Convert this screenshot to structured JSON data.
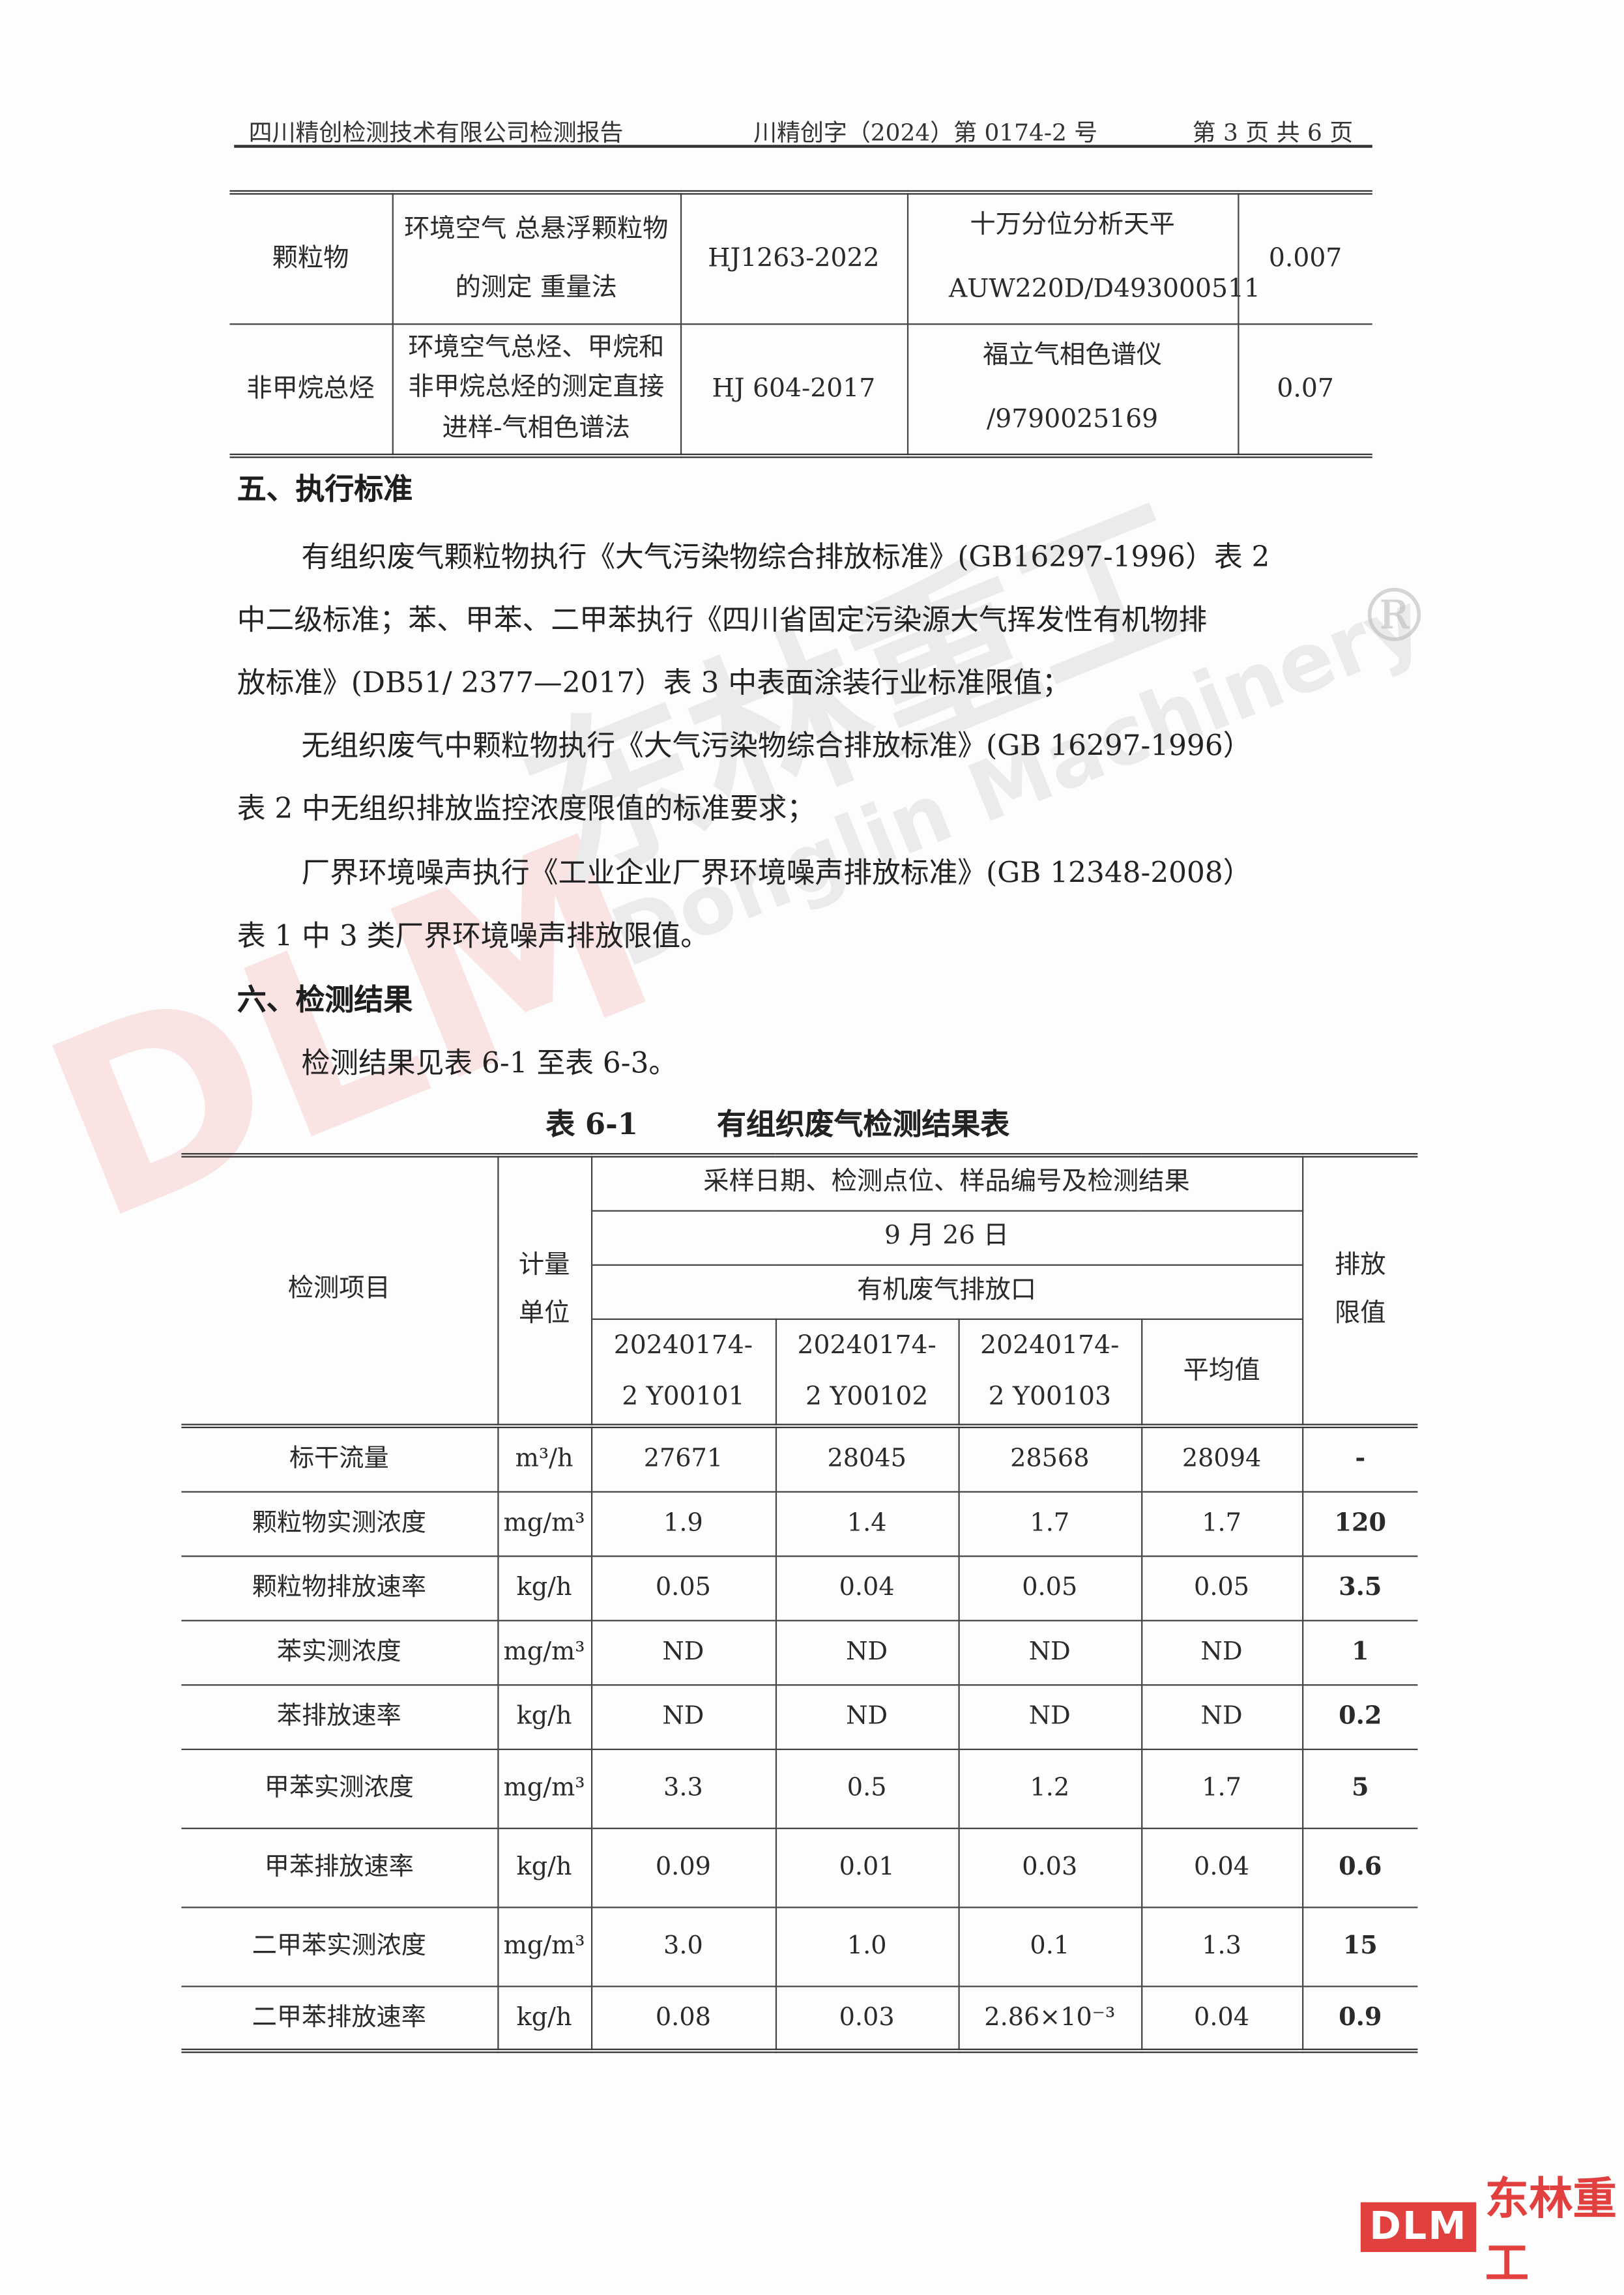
{
  "header": {
    "company": "四川精创检测技术有限公司检测报告",
    "report_no": "川精创字（2024）第 0174-2 号",
    "page": "第 3 页  共 6 页"
  },
  "method_table": {
    "rows": [
      {
        "item": "颗粒物",
        "method": "环境空气 总悬浮颗粒物的测定 重量法",
        "standard": "HJ1263-2022",
        "instrument": "十万分位分析天平 AUW220D/D493000511",
        "limit": "0.007"
      },
      {
        "item": "非甲烷总烃",
        "method": "环境空气总烃、甲烷和非甲烷总烃的测定直接进样-气相色谱法",
        "standard": "HJ 604-2017",
        "instrument": "福立气相色谱仪 /9790025169",
        "limit": "0.07"
      }
    ]
  },
  "section5": {
    "title": "五、执行标准",
    "lines": [
      "有组织废气颗粒物执行《大气污染物综合排放标准》(GB16297-1996）表 2",
      "中二级标准；苯、甲苯、二甲苯执行《四川省固定污染源大气挥发性有机物排",
      "放标准》(DB51/ 2377—2017）表 3 中表面涂装行业标准限值；",
      "无组织废气中颗粒物执行《大气污染物综合排放标准》(GB 16297-1996）",
      "表 2 中无组织排放监控浓度限值的标准要求；",
      "厂界环境噪声执行《工业企业厂界环境噪声排放标准》(GB 12348-2008）",
      "表 1 中 3 类厂界环境噪声排放限值。"
    ]
  },
  "section6": {
    "title": "六、检测结果",
    "intro": "检测结果见表 6-1 至表 6-3。"
  },
  "table6_1": {
    "number": "表 6-1",
    "title": "有组织废气检测结果表",
    "col_item": "检测项目",
    "col_unit": "计量单位",
    "col_group": "采样日期、检测点位、样品编号及检测结果",
    "date": "9 月 26 日",
    "location": "有机废气排放口",
    "samples": [
      "20240174-2 Y00101",
      "20240174-2 Y00102",
      "20240174-2 Y00103"
    ],
    "col_avg": "平均值",
    "col_limit": "排放限值",
    "rows": [
      {
        "item": "标干流量",
        "unit": "m³/h",
        "values": [
          "27671",
          "28045",
          "28568"
        ],
        "avg": "28094",
        "limit": "-"
      },
      {
        "item": "颗粒物实测浓度",
        "unit": "mg/m³",
        "values": [
          "1.9",
          "1.4",
          "1.7"
        ],
        "avg": "1.7",
        "limit": "120"
      },
      {
        "item": "颗粒物排放速率",
        "unit": "kg/h",
        "values": [
          "0.05",
          "0.04",
          "0.05"
        ],
        "avg": "0.05",
        "limit": "3.5"
      },
      {
        "item": "苯实测浓度",
        "unit": "mg/m³",
        "values": [
          "ND",
          "ND",
          "ND"
        ],
        "avg": "ND",
        "limit": "1"
      },
      {
        "item": "苯排放速率",
        "unit": "kg/h",
        "values": [
          "ND",
          "ND",
          "ND"
        ],
        "avg": "ND",
        "limit": "0.2"
      },
      {
        "item": "甲苯实测浓度",
        "unit": "mg/m³",
        "values": [
          "3.3",
          "0.5",
          "1.2"
        ],
        "avg": "1.7",
        "limit": "5"
      },
      {
        "item": "甲苯排放速率",
        "unit": "kg/h",
        "values": [
          "0.09",
          "0.01",
          "0.03"
        ],
        "avg": "0.04",
        "limit": "0.6"
      },
      {
        "item": "二甲苯实测浓度",
        "unit": "mg/m³",
        "values": [
          "3.0",
          "1.0",
          "0.1"
        ],
        "avg": "1.3",
        "limit": "15"
      },
      {
        "item": "二甲苯排放速率",
        "unit": "kg/h",
        "values": [
          "0.08",
          "0.03",
          "2.86×10⁻³"
        ],
        "avg": "0.04",
        "limit": "0.9"
      }
    ]
  },
  "watermark": {
    "logo": "DLM",
    "cn": "东林重工",
    "en": "Donglin Machinery",
    "registered": "®"
  },
  "corner_logo": {
    "box": "DLM",
    "cn": "东林重工",
    "color": "#e2403e"
  }
}
